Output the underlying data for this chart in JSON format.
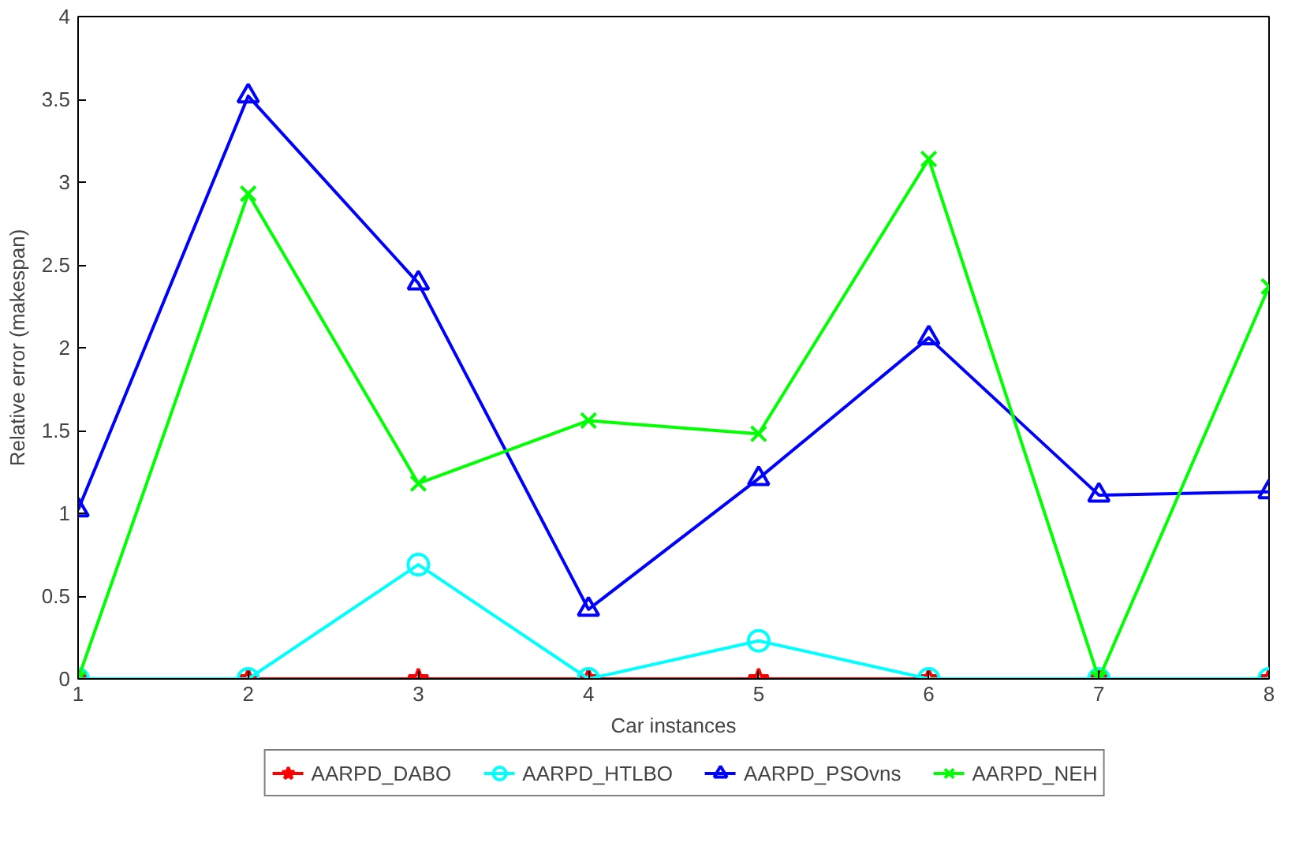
{
  "chart_data": {
    "type": "line",
    "xlabel": "Car instances",
    "ylabel": "Relative error (makespan)",
    "x": [
      1,
      2,
      3,
      4,
      5,
      6,
      7,
      8
    ],
    "series": [
      {
        "name": "AARPD_DABO",
        "color": "#ff0000",
        "marker": "star",
        "values": [
          0,
          0,
          0,
          0,
          0,
          0,
          0,
          0
        ]
      },
      {
        "name": "AARPD_HTLBO",
        "color": "#00ffff",
        "marker": "circle",
        "values": [
          0,
          0,
          0.69,
          0,
          0.23,
          0,
          0,
          0
        ]
      },
      {
        "name": "AARPD_PSOvns",
        "color": "#0000ff",
        "marker": "triangle",
        "values": [
          1.02,
          3.52,
          2.39,
          0.42,
          1.21,
          2.06,
          1.11,
          1.13
        ]
      },
      {
        "name": "AARPD_NEH",
        "color": "#00ff00",
        "marker": "cross",
        "values": [
          0,
          2.93,
          1.18,
          1.56,
          1.48,
          3.14,
          0,
          2.37
        ]
      }
    ],
    "xlim": [
      1,
      8
    ],
    "xticks": [
      1,
      2,
      3,
      4,
      5,
      6,
      7,
      8
    ],
    "ylim": [
      0,
      4
    ],
    "yticks": [
      0,
      0.5,
      1,
      1.5,
      2,
      2.5,
      3,
      3.5,
      4
    ],
    "grid": false,
    "legend": "bottom",
    "line_style": "solid"
  }
}
